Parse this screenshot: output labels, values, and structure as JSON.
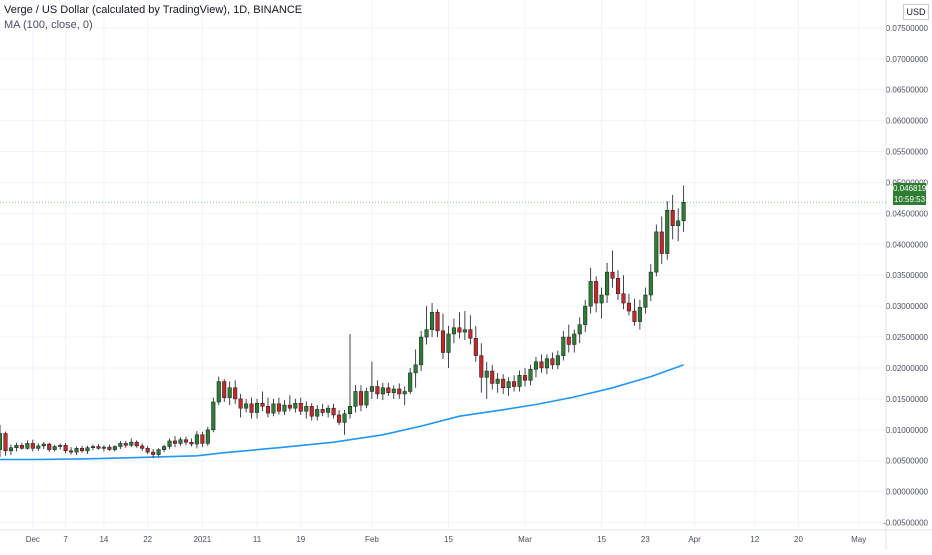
{
  "header": {
    "title": "Verge / US Dollar (calculated by TradingView), 1D, BINANCE",
    "indicator": "MA (100, close, 0)"
  },
  "currency_button": "USD",
  "price_tag": {
    "price": "0.04681913",
    "countdown": "10:59:53"
  },
  "colors": {
    "up": "#2e7d32",
    "down": "#c62828",
    "wick": "#131722",
    "ma": "#2196f3",
    "grid": "#f0f3fa",
    "tag": "#2e7d32"
  },
  "chart_data": {
    "type": "candlestick",
    "y_ticks": [
      "-0.00500000",
      "0.00000000",
      "0.00500000",
      "0.01000000",
      "0.01500000",
      "0.02000000",
      "0.02500000",
      "0.03000000",
      "0.03500000",
      "0.04000000",
      "0.04500000",
      "0.05000000",
      "0.05500000",
      "0.06000000",
      "0.06500000",
      "0.07000000",
      "0.07500000"
    ],
    "ylim": [
      -0.0062,
      0.0795
    ],
    "x_ticks": [
      "Dec",
      "7",
      "14",
      "22",
      "2021",
      "11",
      "19",
      "Feb",
      "15",
      "Mar",
      "15",
      "23",
      "Apr",
      "12",
      "20",
      "May"
    ],
    "xlim": [
      "2020-11-25",
      "2021-05-06"
    ],
    "candles": [
      {
        "date": "2020-11-25",
        "o": 0.0068,
        "h": 0.0108,
        "l": 0.0056,
        "c": 0.0094
      },
      {
        "date": "2020-11-26",
        "o": 0.0094,
        "h": 0.0097,
        "l": 0.0058,
        "c": 0.0066
      },
      {
        "date": "2020-11-27",
        "o": 0.0066,
        "h": 0.0076,
        "l": 0.0059,
        "c": 0.0071
      },
      {
        "date": "2020-11-28",
        "o": 0.0071,
        "h": 0.0079,
        "l": 0.0065,
        "c": 0.0075
      },
      {
        "date": "2020-11-29",
        "o": 0.0075,
        "h": 0.0079,
        "l": 0.0068,
        "c": 0.007
      },
      {
        "date": "2020-11-30",
        "o": 0.007,
        "h": 0.0083,
        "l": 0.0068,
        "c": 0.0078
      },
      {
        "date": "2020-12-01",
        "o": 0.0078,
        "h": 0.0084,
        "l": 0.0065,
        "c": 0.007
      },
      {
        "date": "2020-12-02",
        "o": 0.007,
        "h": 0.0078,
        "l": 0.0066,
        "c": 0.0074
      },
      {
        "date": "2020-12-03",
        "o": 0.0074,
        "h": 0.008,
        "l": 0.0069,
        "c": 0.0077
      },
      {
        "date": "2020-12-04",
        "o": 0.0077,
        "h": 0.0079,
        "l": 0.0064,
        "c": 0.0068
      },
      {
        "date": "2020-12-05",
        "o": 0.0068,
        "h": 0.0076,
        "l": 0.0065,
        "c": 0.0073
      },
      {
        "date": "2020-12-06",
        "o": 0.0073,
        "h": 0.0078,
        "l": 0.0068,
        "c": 0.0075
      },
      {
        "date": "2020-12-07",
        "o": 0.0075,
        "h": 0.0079,
        "l": 0.0062,
        "c": 0.0066
      },
      {
        "date": "2020-12-08",
        "o": 0.0066,
        "h": 0.0072,
        "l": 0.006,
        "c": 0.0064
      },
      {
        "date": "2020-12-09",
        "o": 0.0064,
        "h": 0.0073,
        "l": 0.0059,
        "c": 0.007
      },
      {
        "date": "2020-12-10",
        "o": 0.007,
        "h": 0.0074,
        "l": 0.0063,
        "c": 0.0066
      },
      {
        "date": "2020-12-11",
        "o": 0.0066,
        "h": 0.0074,
        "l": 0.0061,
        "c": 0.0071
      },
      {
        "date": "2020-12-12",
        "o": 0.0071,
        "h": 0.0076,
        "l": 0.0067,
        "c": 0.0073
      },
      {
        "date": "2020-12-13",
        "o": 0.0073,
        "h": 0.0077,
        "l": 0.0068,
        "c": 0.007
      },
      {
        "date": "2020-12-14",
        "o": 0.007,
        "h": 0.0075,
        "l": 0.0065,
        "c": 0.0072
      },
      {
        "date": "2020-12-15",
        "o": 0.0072,
        "h": 0.0076,
        "l": 0.0066,
        "c": 0.0068
      },
      {
        "date": "2020-12-16",
        "o": 0.0068,
        "h": 0.0075,
        "l": 0.0065,
        "c": 0.0073
      },
      {
        "date": "2020-12-17",
        "o": 0.0073,
        "h": 0.0082,
        "l": 0.0069,
        "c": 0.0078
      },
      {
        "date": "2020-12-18",
        "o": 0.0078,
        "h": 0.0082,
        "l": 0.0071,
        "c": 0.0075
      },
      {
        "date": "2020-12-19",
        "o": 0.0075,
        "h": 0.0086,
        "l": 0.0072,
        "c": 0.008
      },
      {
        "date": "2020-12-20",
        "o": 0.008,
        "h": 0.0083,
        "l": 0.0071,
        "c": 0.0074
      },
      {
        "date": "2020-12-21",
        "o": 0.0074,
        "h": 0.0078,
        "l": 0.0066,
        "c": 0.007
      },
      {
        "date": "2020-12-22",
        "o": 0.007,
        "h": 0.0074,
        "l": 0.0061,
        "c": 0.0064
      },
      {
        "date": "2020-12-23",
        "o": 0.0064,
        "h": 0.0069,
        "l": 0.0055,
        "c": 0.006
      },
      {
        "date": "2020-12-24",
        "o": 0.006,
        "h": 0.007,
        "l": 0.0057,
        "c": 0.0068
      },
      {
        "date": "2020-12-25",
        "o": 0.0068,
        "h": 0.0076,
        "l": 0.0064,
        "c": 0.0073
      },
      {
        "date": "2020-12-26",
        "o": 0.0073,
        "h": 0.0086,
        "l": 0.0069,
        "c": 0.0082
      },
      {
        "date": "2020-12-27",
        "o": 0.0082,
        "h": 0.009,
        "l": 0.0072,
        "c": 0.0078
      },
      {
        "date": "2020-12-28",
        "o": 0.0078,
        "h": 0.0088,
        "l": 0.0074,
        "c": 0.0084
      },
      {
        "date": "2020-12-29",
        "o": 0.0084,
        "h": 0.0089,
        "l": 0.0075,
        "c": 0.008
      },
      {
        "date": "2020-12-30",
        "o": 0.008,
        "h": 0.0086,
        "l": 0.0073,
        "c": 0.0077
      },
      {
        "date": "2020-12-31",
        "o": 0.0077,
        "h": 0.0098,
        "l": 0.007,
        "c": 0.0092
      },
      {
        "date": "2021-01-01",
        "o": 0.0092,
        "h": 0.0097,
        "l": 0.0072,
        "c": 0.0078
      },
      {
        "date": "2021-01-02",
        "o": 0.0078,
        "h": 0.0105,
        "l": 0.0074,
        "c": 0.01
      },
      {
        "date": "2021-01-03",
        "o": 0.01,
        "h": 0.0152,
        "l": 0.0096,
        "c": 0.0145
      },
      {
        "date": "2021-01-04",
        "o": 0.0145,
        "h": 0.0186,
        "l": 0.014,
        "c": 0.0178
      },
      {
        "date": "2021-01-05",
        "o": 0.0178,
        "h": 0.0182,
        "l": 0.0145,
        "c": 0.0152
      },
      {
        "date": "2021-01-06",
        "o": 0.0152,
        "h": 0.0178,
        "l": 0.014,
        "c": 0.0168
      },
      {
        "date": "2021-01-07",
        "o": 0.0168,
        "h": 0.018,
        "l": 0.0142,
        "c": 0.015
      },
      {
        "date": "2021-01-08",
        "o": 0.015,
        "h": 0.0158,
        "l": 0.012,
        "c": 0.0135
      },
      {
        "date": "2021-01-09",
        "o": 0.0135,
        "h": 0.015,
        "l": 0.0128,
        "c": 0.0142
      },
      {
        "date": "2021-01-10",
        "o": 0.0142,
        "h": 0.0152,
        "l": 0.0118,
        "c": 0.0128
      },
      {
        "date": "2021-01-11",
        "o": 0.0128,
        "h": 0.015,
        "l": 0.0118,
        "c": 0.0143
      },
      {
        "date": "2021-01-12",
        "o": 0.0143,
        "h": 0.0162,
        "l": 0.013,
        "c": 0.0138
      },
      {
        "date": "2021-01-13",
        "o": 0.0138,
        "h": 0.0152,
        "l": 0.012,
        "c": 0.0127
      },
      {
        "date": "2021-01-14",
        "o": 0.0127,
        "h": 0.015,
        "l": 0.0122,
        "c": 0.0142
      },
      {
        "date": "2021-01-15",
        "o": 0.0142,
        "h": 0.0152,
        "l": 0.0125,
        "c": 0.013
      },
      {
        "date": "2021-01-16",
        "o": 0.013,
        "h": 0.0148,
        "l": 0.0124,
        "c": 0.014
      },
      {
        "date": "2021-01-17",
        "o": 0.014,
        "h": 0.0156,
        "l": 0.013,
        "c": 0.0135
      },
      {
        "date": "2021-01-18",
        "o": 0.0135,
        "h": 0.015,
        "l": 0.0128,
        "c": 0.0143
      },
      {
        "date": "2021-01-19",
        "o": 0.0143,
        "h": 0.0152,
        "l": 0.0124,
        "c": 0.013
      },
      {
        "date": "2021-01-20",
        "o": 0.013,
        "h": 0.0146,
        "l": 0.0118,
        "c": 0.0138
      },
      {
        "date": "2021-01-21",
        "o": 0.0138,
        "h": 0.0143,
        "l": 0.0115,
        "c": 0.0122
      },
      {
        "date": "2021-01-22",
        "o": 0.0122,
        "h": 0.014,
        "l": 0.0115,
        "c": 0.0133
      },
      {
        "date": "2021-01-23",
        "o": 0.0133,
        "h": 0.0142,
        "l": 0.0122,
        "c": 0.0128
      },
      {
        "date": "2021-01-24",
        "o": 0.0128,
        "h": 0.014,
        "l": 0.012,
        "c": 0.0135
      },
      {
        "date": "2021-01-25",
        "o": 0.0135,
        "h": 0.0142,
        "l": 0.0118,
        "c": 0.0124
      },
      {
        "date": "2021-01-26",
        "o": 0.0124,
        "h": 0.0132,
        "l": 0.0108,
        "c": 0.0112
      },
      {
        "date": "2021-01-27",
        "o": 0.0112,
        "h": 0.0132,
        "l": 0.0092,
        "c": 0.0126
      },
      {
        "date": "2021-01-28",
        "o": 0.0126,
        "h": 0.0255,
        "l": 0.0118,
        "c": 0.0138
      },
      {
        "date": "2021-01-29",
        "o": 0.0138,
        "h": 0.0172,
        "l": 0.0128,
        "c": 0.0162
      },
      {
        "date": "2021-01-30",
        "o": 0.0162,
        "h": 0.0172,
        "l": 0.013,
        "c": 0.014
      },
      {
        "date": "2021-01-31",
        "o": 0.014,
        "h": 0.0168,
        "l": 0.0135,
        "c": 0.0162
      },
      {
        "date": "2021-02-01",
        "o": 0.0162,
        "h": 0.021,
        "l": 0.015,
        "c": 0.017
      },
      {
        "date": "2021-02-02",
        "o": 0.017,
        "h": 0.018,
        "l": 0.015,
        "c": 0.0158
      },
      {
        "date": "2021-02-03",
        "o": 0.0158,
        "h": 0.0176,
        "l": 0.0148,
        "c": 0.0168
      },
      {
        "date": "2021-02-04",
        "o": 0.0168,
        "h": 0.0176,
        "l": 0.0155,
        "c": 0.016
      },
      {
        "date": "2021-02-05",
        "o": 0.016,
        "h": 0.0172,
        "l": 0.015,
        "c": 0.0166
      },
      {
        "date": "2021-02-06",
        "o": 0.0166,
        "h": 0.0175,
        "l": 0.015,
        "c": 0.0158
      },
      {
        "date": "2021-02-07",
        "o": 0.0158,
        "h": 0.017,
        "l": 0.014,
        "c": 0.0162
      },
      {
        "date": "2021-02-08",
        "o": 0.0162,
        "h": 0.02,
        "l": 0.0158,
        "c": 0.0192
      },
      {
        "date": "2021-02-09",
        "o": 0.0192,
        "h": 0.023,
        "l": 0.0168,
        "c": 0.0205
      },
      {
        "date": "2021-02-10",
        "o": 0.0205,
        "h": 0.026,
        "l": 0.0195,
        "c": 0.025
      },
      {
        "date": "2021-02-11",
        "o": 0.025,
        "h": 0.03,
        "l": 0.0238,
        "c": 0.0262
      },
      {
        "date": "2021-02-12",
        "o": 0.0262,
        "h": 0.0305,
        "l": 0.025,
        "c": 0.029
      },
      {
        "date": "2021-02-13",
        "o": 0.029,
        "h": 0.0295,
        "l": 0.025,
        "c": 0.026
      },
      {
        "date": "2021-02-14",
        "o": 0.026,
        "h": 0.0288,
        "l": 0.0215,
        "c": 0.0225
      },
      {
        "date": "2021-02-15",
        "o": 0.0225,
        "h": 0.0268,
        "l": 0.02,
        "c": 0.0255
      },
      {
        "date": "2021-02-16",
        "o": 0.0255,
        "h": 0.028,
        "l": 0.024,
        "c": 0.0265
      },
      {
        "date": "2021-02-17",
        "o": 0.0265,
        "h": 0.029,
        "l": 0.0248,
        "c": 0.0258
      },
      {
        "date": "2021-02-18",
        "o": 0.0258,
        "h": 0.0292,
        "l": 0.0245,
        "c": 0.0262
      },
      {
        "date": "2021-02-19",
        "o": 0.0262,
        "h": 0.0285,
        "l": 0.0238,
        "c": 0.0248
      },
      {
        "date": "2021-02-20",
        "o": 0.0248,
        "h": 0.0268,
        "l": 0.021,
        "c": 0.022
      },
      {
        "date": "2021-02-21",
        "o": 0.022,
        "h": 0.024,
        "l": 0.016,
        "c": 0.0185
      },
      {
        "date": "2021-02-22",
        "o": 0.0185,
        "h": 0.021,
        "l": 0.015,
        "c": 0.0195
      },
      {
        "date": "2021-02-23",
        "o": 0.0195,
        "h": 0.0205,
        "l": 0.0165,
        "c": 0.0175
      },
      {
        "date": "2021-02-24",
        "o": 0.0175,
        "h": 0.0192,
        "l": 0.016,
        "c": 0.0182
      },
      {
        "date": "2021-02-25",
        "o": 0.0182,
        "h": 0.019,
        "l": 0.0158,
        "c": 0.0168
      },
      {
        "date": "2021-02-26",
        "o": 0.0168,
        "h": 0.0185,
        "l": 0.0155,
        "c": 0.0178
      },
      {
        "date": "2021-02-27",
        "o": 0.0178,
        "h": 0.0188,
        "l": 0.0162,
        "c": 0.017
      },
      {
        "date": "2021-02-28",
        "o": 0.017,
        "h": 0.0196,
        "l": 0.0162,
        "c": 0.0188
      },
      {
        "date": "2021-03-01",
        "o": 0.0188,
        "h": 0.02,
        "l": 0.017,
        "c": 0.018
      },
      {
        "date": "2021-03-02",
        "o": 0.018,
        "h": 0.0205,
        "l": 0.0172,
        "c": 0.0198
      },
      {
        "date": "2021-03-03",
        "o": 0.0198,
        "h": 0.0218,
        "l": 0.0185,
        "c": 0.021
      },
      {
        "date": "2021-03-04",
        "o": 0.021,
        "h": 0.0222,
        "l": 0.0192,
        "c": 0.02
      },
      {
        "date": "2021-03-05",
        "o": 0.02,
        "h": 0.0222,
        "l": 0.019,
        "c": 0.0215
      },
      {
        "date": "2021-03-06",
        "o": 0.0215,
        "h": 0.0225,
        "l": 0.0198,
        "c": 0.0205
      },
      {
        "date": "2021-03-07",
        "o": 0.0205,
        "h": 0.0228,
        "l": 0.0198,
        "c": 0.022
      },
      {
        "date": "2021-03-08",
        "o": 0.022,
        "h": 0.026,
        "l": 0.0212,
        "c": 0.025
      },
      {
        "date": "2021-03-09",
        "o": 0.025,
        "h": 0.027,
        "l": 0.0225,
        "c": 0.0238
      },
      {
        "date": "2021-03-10",
        "o": 0.0238,
        "h": 0.0262,
        "l": 0.0225,
        "c": 0.0255
      },
      {
        "date": "2021-03-11",
        "o": 0.0255,
        "h": 0.0282,
        "l": 0.024,
        "c": 0.027
      },
      {
        "date": "2021-03-12",
        "o": 0.027,
        "h": 0.031,
        "l": 0.0258,
        "c": 0.03
      },
      {
        "date": "2021-03-13",
        "o": 0.03,
        "h": 0.0362,
        "l": 0.0288,
        "c": 0.034
      },
      {
        "date": "2021-03-14",
        "o": 0.034,
        "h": 0.0348,
        "l": 0.029,
        "c": 0.0305
      },
      {
        "date": "2021-03-15",
        "o": 0.0305,
        "h": 0.033,
        "l": 0.028,
        "c": 0.0318
      },
      {
        "date": "2021-03-16",
        "o": 0.0318,
        "h": 0.037,
        "l": 0.0305,
        "c": 0.0355
      },
      {
        "date": "2021-03-17",
        "o": 0.0355,
        "h": 0.039,
        "l": 0.033,
        "c": 0.0345
      },
      {
        "date": "2021-03-18",
        "o": 0.0345,
        "h": 0.0358,
        "l": 0.031,
        "c": 0.032
      },
      {
        "date": "2021-03-19",
        "o": 0.032,
        "h": 0.035,
        "l": 0.0295,
        "c": 0.0305
      },
      {
        "date": "2021-03-20",
        "o": 0.0305,
        "h": 0.032,
        "l": 0.0285,
        "c": 0.0292
      },
      {
        "date": "2021-03-21",
        "o": 0.0292,
        "h": 0.0312,
        "l": 0.0268,
        "c": 0.0275
      },
      {
        "date": "2021-03-22",
        "o": 0.0275,
        "h": 0.031,
        "l": 0.0262,
        "c": 0.0298
      },
      {
        "date": "2021-03-23",
        "o": 0.0298,
        "h": 0.033,
        "l": 0.0288,
        "c": 0.0318
      },
      {
        "date": "2021-03-24",
        "o": 0.0318,
        "h": 0.0368,
        "l": 0.0308,
        "c": 0.0355
      },
      {
        "date": "2021-03-25",
        "o": 0.0355,
        "h": 0.0432,
        "l": 0.0348,
        "c": 0.042
      },
      {
        "date": "2021-03-26",
        "o": 0.042,
        "h": 0.0445,
        "l": 0.0368,
        "c": 0.0385
      },
      {
        "date": "2021-03-27",
        "o": 0.0385,
        "h": 0.047,
        "l": 0.0375,
        "c": 0.0455
      },
      {
        "date": "2021-03-28",
        "o": 0.0455,
        "h": 0.048,
        "l": 0.0408,
        "c": 0.043
      },
      {
        "date": "2021-03-29",
        "o": 0.043,
        "h": 0.0458,
        "l": 0.0405,
        "c": 0.0438
      },
      {
        "date": "2021-03-30",
        "o": 0.0438,
        "h": 0.0495,
        "l": 0.042,
        "c": 0.0468
      }
    ],
    "ma": {
      "name": "MA (100, close, 0)",
      "points": [
        [
          "2020-11-25",
          0.0052
        ],
        [
          "2020-12-01",
          0.0052
        ],
        [
          "2020-12-10",
          0.0053
        ],
        [
          "2020-12-20",
          0.0055
        ],
        [
          "2020-12-31",
          0.0058
        ],
        [
          "2021-01-05",
          0.0063
        ],
        [
          "2021-01-15",
          0.0071
        ],
        [
          "2021-01-25",
          0.008
        ],
        [
          "2021-02-03",
          0.0092
        ],
        [
          "2021-02-10",
          0.0106
        ],
        [
          "2021-02-17",
          0.0122
        ],
        [
          "2021-02-24",
          0.0131
        ],
        [
          "2021-03-03",
          0.0141
        ],
        [
          "2021-03-10",
          0.0153
        ],
        [
          "2021-03-17",
          0.0168
        ],
        [
          "2021-03-24",
          0.0186
        ],
        [
          "2021-03-30",
          0.0205
        ]
      ]
    }
  }
}
